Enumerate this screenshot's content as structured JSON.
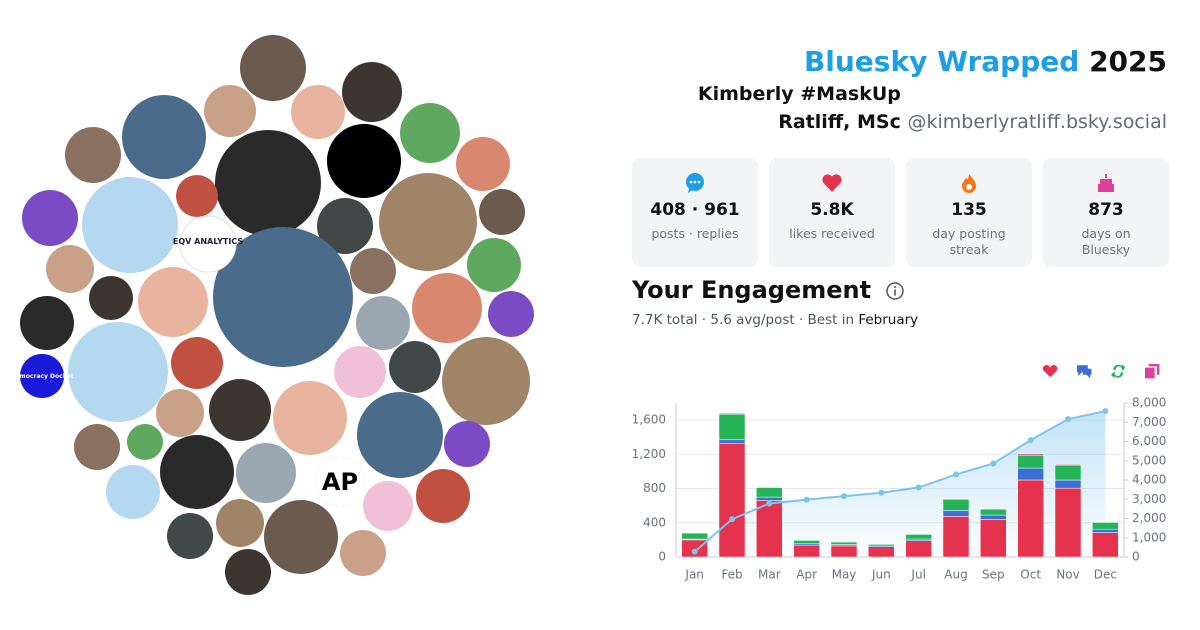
{
  "header": {
    "title": "Bluesky Wrapped",
    "year": "2025",
    "name": "Kimberly #MaskUp Ratliff, MSc",
    "handle": "@kimberlyratliff.bsky.social"
  },
  "avatars": {
    "labels": [
      "EQV ANALYTICS",
      "AP",
      "Democracy Docket"
    ]
  },
  "stats": [
    {
      "value": "408 · 961",
      "label": "posts · replies"
    },
    {
      "value": "5.8K",
      "label": "likes received"
    },
    {
      "value": "135",
      "label": "day posting streak"
    },
    {
      "value": "873",
      "label": "days on Bluesky"
    }
  ],
  "engagement": {
    "title": "Your Engagement",
    "summary": "7.7K total · 5.6 avg/post · Best in",
    "best_month": "February"
  },
  "chart_data": {
    "type": "bar",
    "stacked": true,
    "grid": true,
    "categories": [
      "Jan",
      "Feb",
      "Mar",
      "Apr",
      "May",
      "Jun",
      "Jul",
      "Aug",
      "Sep",
      "Oct",
      "Nov",
      "Dec"
    ],
    "series": [
      {
        "color": "#e5334f",
        "values": [
          200,
          1330,
          660,
          140,
          130,
          120,
          190,
          475,
          440,
          900,
          805,
          285
        ]
      },
      {
        "color": "#3b6fd8",
        "values": [
          10,
          40,
          40,
          15,
          15,
          20,
          20,
          70,
          50,
          140,
          95,
          40
        ]
      },
      {
        "color": "#22b455",
        "values": [
          70,
          300,
          110,
          40,
          30,
          12,
          55,
          130,
          70,
          150,
          175,
          80
        ]
      },
      {
        "color": "#e0409a",
        "values": [
          4,
          10,
          8,
          5,
          4,
          3,
          5,
          5,
          5,
          15,
          10,
          6
        ]
      },
      {
        "type": "line",
        "axis": "y2",
        "color": "#7cc4ec",
        "values": [
          280,
          1960,
          2780,
          2980,
          3160,
          3340,
          3610,
          4290,
          4860,
          6070,
          7160,
          7580
        ]
      }
    ],
    "ylim": [
      0,
      1800
    ],
    "yticks": [
      0,
      400,
      800,
      {
        "value": 1200,
        "label": "1,200"
      },
      {
        "value": 1600,
        "label": "1,600"
      }
    ],
    "y2lim": [
      0,
      8000
    ],
    "y2ticks": [
      0,
      {
        "value": 1000,
        "label": "1,000"
      },
      {
        "value": 2000,
        "label": "2,000"
      },
      {
        "value": 3000,
        "label": "3,000"
      },
      {
        "value": 4000,
        "label": "4,000"
      },
      {
        "value": 5000,
        "label": "5,000"
      },
      {
        "value": 6000,
        "label": "6,000"
      },
      {
        "value": 7000,
        "label": "7,000"
      },
      {
        "value": 8000,
        "label": "8,000"
      }
    ]
  }
}
